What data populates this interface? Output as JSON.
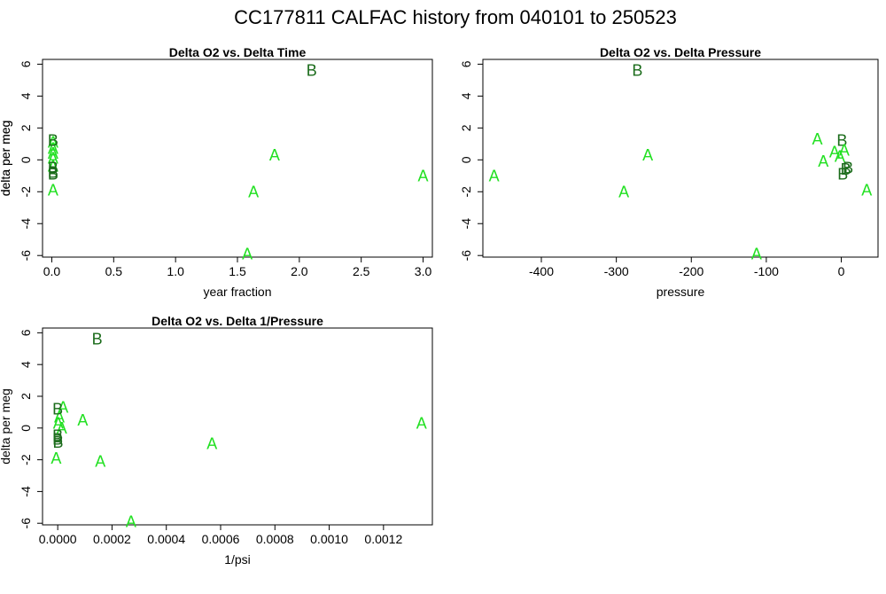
{
  "page": {
    "title": "CC177811   CALFAC history from  040101  to  250523"
  },
  "colors": {
    "A": "#22e022",
    "B": "#1a6b1a"
  },
  "chart_data": [
    {
      "type": "scatter",
      "title": "Delta O2 vs. Delta Time",
      "xlabel": "year fraction",
      "ylabel": "delta per meg",
      "xlim": [
        -0.075,
        3.075
      ],
      "ylim": [
        -6.1,
        6.3
      ],
      "xticks": [
        0.0,
        0.5,
        1.0,
        1.5,
        2.0,
        2.5,
        3.0
      ],
      "xtick_labels": [
        "0.0",
        "0.5",
        "1.0",
        "1.5",
        "2.0",
        "2.5",
        "3.0"
      ],
      "yticks": [
        -6,
        -4,
        -2,
        0,
        2,
        4,
        6
      ],
      "ytick_labels": [
        "-6",
        "-4",
        "-2",
        "0",
        "2",
        "4",
        "6"
      ],
      "points": [
        {
          "x": 0.01,
          "y": -1.9,
          "label": "A"
        },
        {
          "x": 0.01,
          "y": 0.4,
          "label": "A"
        },
        {
          "x": 0.01,
          "y": 0.7,
          "label": "A"
        },
        {
          "x": 0.01,
          "y": 1.1,
          "label": "A"
        },
        {
          "x": 0.01,
          "y": 0.1,
          "label": "A"
        },
        {
          "x": 0.01,
          "y": -0.4,
          "label": "A"
        },
        {
          "x": 0.01,
          "y": 1.2,
          "label": "B"
        },
        {
          "x": 0.01,
          "y": -0.5,
          "label": "B"
        },
        {
          "x": 0.01,
          "y": -0.8,
          "label": "B"
        },
        {
          "x": 0.01,
          "y": -0.9,
          "label": "B"
        },
        {
          "x": 1.58,
          "y": -5.9,
          "label": "A"
        },
        {
          "x": 1.63,
          "y": -2.0,
          "label": "A"
        },
        {
          "x": 1.8,
          "y": 0.3,
          "label": "A"
        },
        {
          "x": 2.1,
          "y": 5.6,
          "label": "B"
        },
        {
          "x": 3.0,
          "y": -1.0,
          "label": "A"
        }
      ]
    },
    {
      "type": "scatter",
      "title": "Delta O2 vs. Delta Pressure",
      "xlabel": "pressure",
      "ylabel": "delta per meg",
      "xlim": [
        -478,
        49
      ],
      "ylim": [
        -6.1,
        6.3
      ],
      "xticks": [
        -400,
        -300,
        -200,
        -100,
        0
      ],
      "xtick_labels": [
        "-400",
        "-300",
        "-200",
        "-100",
        "0"
      ],
      "yticks": [
        -6,
        -4,
        -2,
        0,
        2,
        4,
        6
      ],
      "ytick_labels": [
        "-6",
        "-4",
        "-2",
        "0",
        "2",
        "4",
        "6"
      ],
      "points": [
        {
          "x": -463,
          "y": -1.0,
          "label": "A"
        },
        {
          "x": -290,
          "y": -2.0,
          "label": "A"
        },
        {
          "x": -272,
          "y": 5.6,
          "label": "B"
        },
        {
          "x": -258,
          "y": 0.3,
          "label": "A"
        },
        {
          "x": -113,
          "y": -5.9,
          "label": "A"
        },
        {
          "x": -32,
          "y": 1.3,
          "label": "A"
        },
        {
          "x": -24,
          "y": -0.1,
          "label": "A"
        },
        {
          "x": -9,
          "y": 0.5,
          "label": "A"
        },
        {
          "x": -2,
          "y": 0.2,
          "label": "A"
        },
        {
          "x": 1,
          "y": 1.2,
          "label": "B"
        },
        {
          "x": 4,
          "y": 0.6,
          "label": "A"
        },
        {
          "x": 6,
          "y": -0.6,
          "label": "B"
        },
        {
          "x": 9,
          "y": -0.5,
          "label": "B"
        },
        {
          "x": 2,
          "y": -0.9,
          "label": "B"
        },
        {
          "x": 34,
          "y": -1.9,
          "label": "A"
        }
      ]
    },
    {
      "type": "scatter",
      "title": "Delta O2 vs. Delta 1/Pressure",
      "xlabel": "1/psi",
      "ylabel": "delta per meg",
      "xlim": [
        -5.6e-05,
        0.00138
      ],
      "ylim": [
        -6.1,
        6.3
      ],
      "xticks": [
        0.0,
        0.0002,
        0.0004,
        0.0006,
        0.0008,
        0.001,
        0.0012
      ],
      "xtick_labels": [
        "0.0000",
        "0.0002",
        "0.0004",
        "0.0006",
        "0.0008",
        "0.0010",
        "0.0012"
      ],
      "yticks": [
        -6,
        -4,
        -2,
        0,
        2,
        4,
        6
      ],
      "ytick_labels": [
        "-6",
        "-4",
        "-2",
        "0",
        "2",
        "4",
        "6"
      ],
      "points": [
        {
          "x": -6e-06,
          "y": -1.9,
          "label": "A"
        },
        {
          "x": 2e-06,
          "y": 0.3,
          "label": "A"
        },
        {
          "x": 6e-06,
          "y": 0.7,
          "label": "A"
        },
        {
          "x": 2e-05,
          "y": 1.3,
          "label": "A"
        },
        {
          "x": 1.5e-05,
          "y": 0.0,
          "label": "A"
        },
        {
          "x": 9.2e-05,
          "y": 0.5,
          "label": "A"
        },
        {
          "x": 0.0,
          "y": 1.2,
          "label": "B"
        },
        {
          "x": 0.0,
          "y": -0.5,
          "label": "B"
        },
        {
          "x": 0.0,
          "y": -0.7,
          "label": "B"
        },
        {
          "x": 1e-06,
          "y": -0.9,
          "label": "B"
        },
        {
          "x": 0.000145,
          "y": 5.6,
          "label": "B"
        },
        {
          "x": 0.000157,
          "y": -2.1,
          "label": "A"
        },
        {
          "x": 0.00027,
          "y": -5.9,
          "label": "A"
        },
        {
          "x": 0.000568,
          "y": -1.0,
          "label": "A"
        },
        {
          "x": 0.00134,
          "y": 0.3,
          "label": "A"
        }
      ]
    }
  ]
}
